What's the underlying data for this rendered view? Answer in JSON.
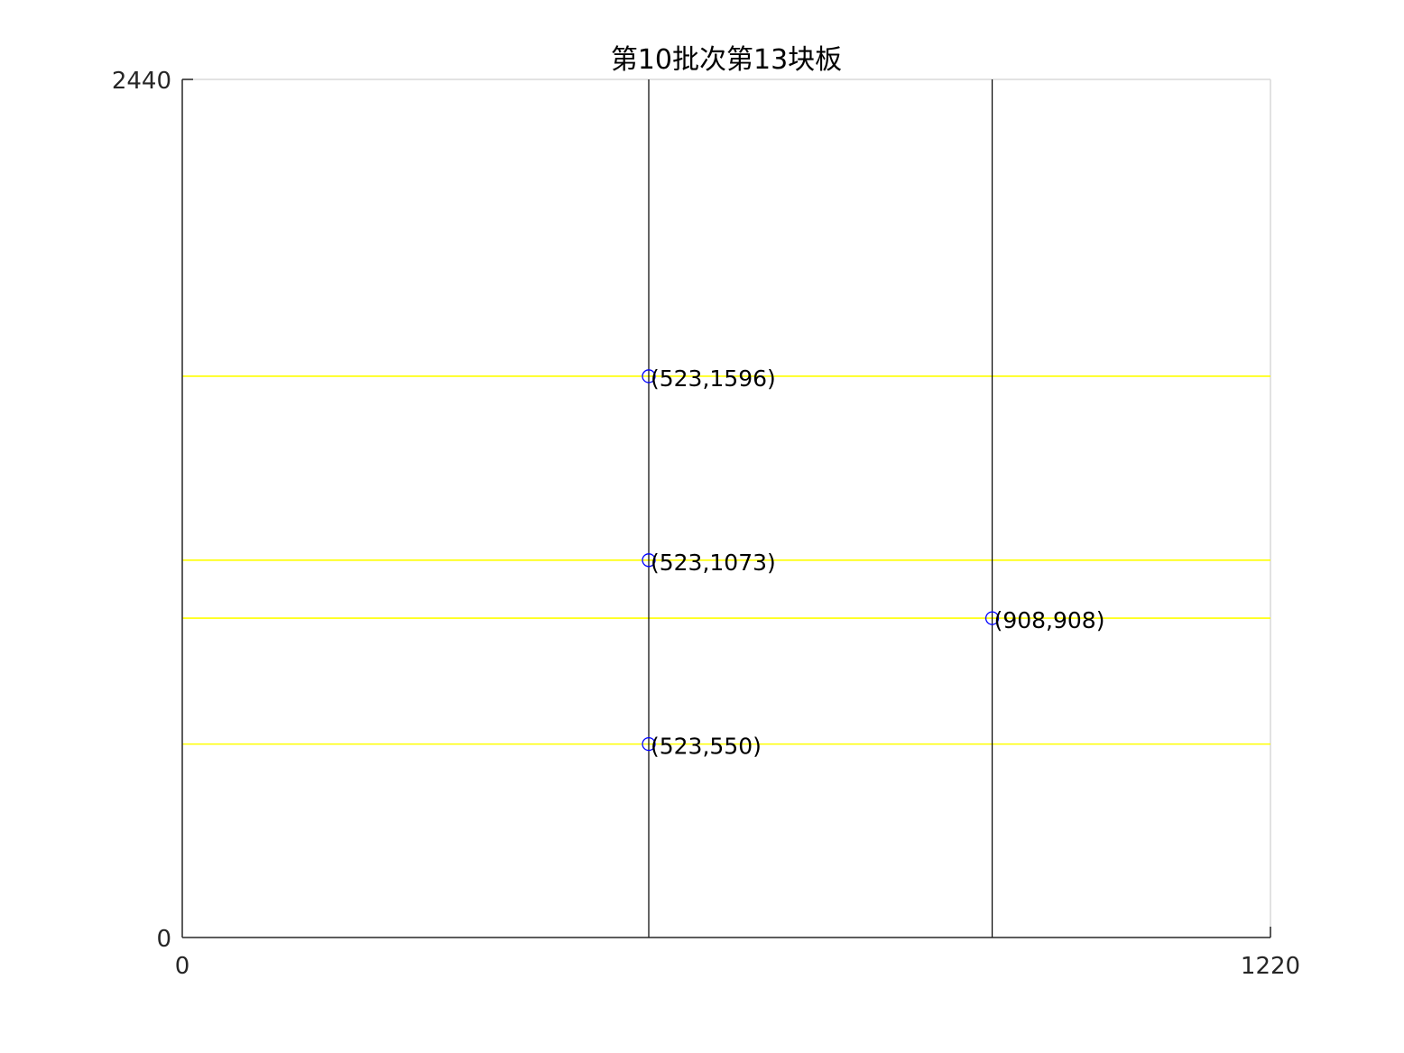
{
  "chart_data": {
    "type": "scatter",
    "title": "第10批次第13块板",
    "xlabel": "",
    "ylabel": "",
    "xlim": [
      0,
      1220
    ],
    "ylim": [
      0,
      2440
    ],
    "xticks": [
      "0",
      "1220"
    ],
    "yticks": [
      "0",
      "2440"
    ],
    "grid": false,
    "vertical_cut_lines": [
      {
        "x": 523,
        "y_from": 0,
        "y_to": 2440
      },
      {
        "x": 908,
        "y_from": 0,
        "y_to": 2440
      }
    ],
    "horizontal_cut_lines": [
      {
        "y": 1596,
        "x_from": 0,
        "x_to": 1220
      },
      {
        "y": 1073,
        "x_from": 0,
        "x_to": 1220
      },
      {
        "y": 908,
        "x_from": 0,
        "x_to": 1220
      },
      {
        "y": 550,
        "x_from": 0,
        "x_to": 1220
      }
    ],
    "points": [
      {
        "x": 523,
        "y": 1596,
        "label": "(523,1596)"
      },
      {
        "x": 523,
        "y": 1073,
        "label": "(523,1073)"
      },
      {
        "x": 908,
        "y": 908,
        "label": "(908,908)"
      },
      {
        "x": 523,
        "y": 550,
        "label": "(523,550)"
      }
    ],
    "colors": {
      "vertical_line": "#000000",
      "horizontal_line": "#ffff00",
      "marker": "#0000ff",
      "axis": "#262626",
      "box": "#d9d9d9"
    }
  }
}
